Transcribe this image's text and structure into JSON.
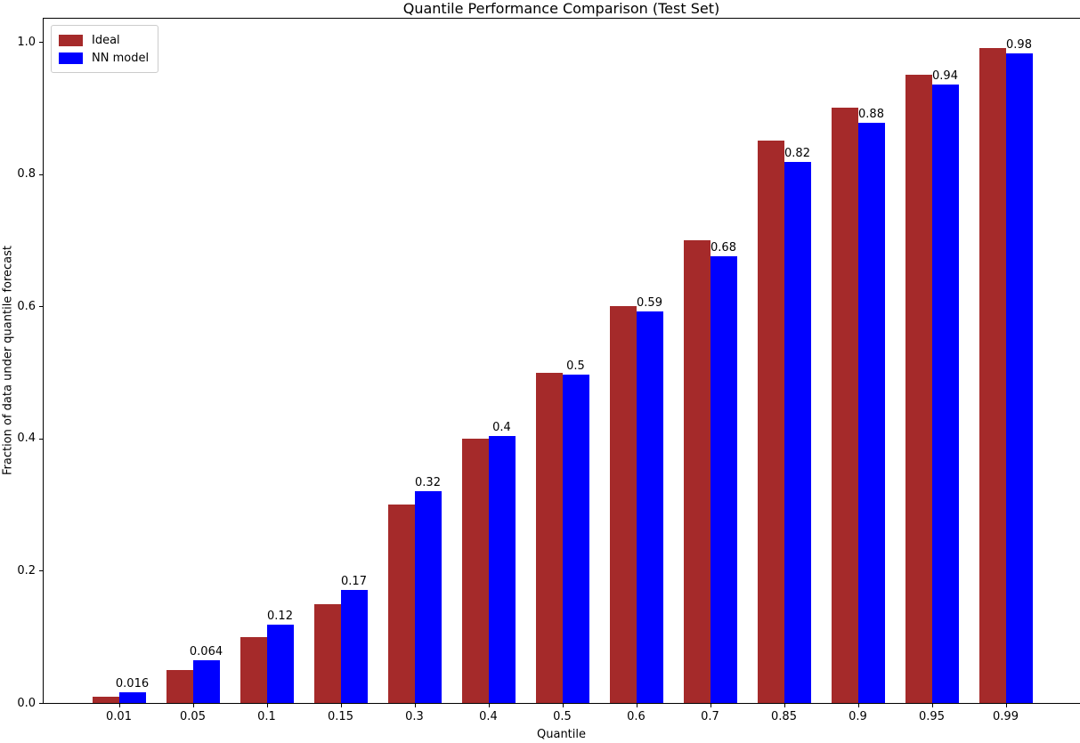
{
  "figure": {
    "title": "Quantile Performance Comparison (Test Set)",
    "xlabel": "Quantile",
    "ylabel": "Fraction of data under quantile forecast"
  },
  "chart_data": {
    "type": "bar",
    "title": "Quantile Performance Comparison (Test Set)",
    "xlabel": "Quantile",
    "ylabel": "Fraction of data under quantile forecast",
    "categories": [
      "0.01",
      "0.05",
      "0.1",
      "0.15",
      "0.3",
      "0.4",
      "0.5",
      "0.6",
      "0.7",
      "0.85",
      "0.9",
      "0.95",
      "0.99"
    ],
    "series": [
      {
        "name": "Ideal",
        "color": "#a52a2a",
        "values": [
          0.01,
          0.05,
          0.1,
          0.15,
          0.3,
          0.4,
          0.5,
          0.6,
          0.7,
          0.85,
          0.9,
          0.95,
          0.99
        ]
      },
      {
        "name": "NN model",
        "color": "#0000ff",
        "values": [
          0.016,
          0.064,
          0.118,
          0.171,
          0.32,
          0.404,
          0.497,
          0.592,
          0.675,
          0.818,
          0.878,
          0.935,
          0.983
        ],
        "bar_labels": [
          "0.016",
          "0.064",
          "0.12",
          "0.17",
          "0.32",
          "0.4",
          "0.5",
          "0.59",
          "0.68",
          "0.82",
          "0.88",
          "0.94",
          "0.98"
        ]
      }
    ],
    "y_ticks": [
      0.0,
      0.2,
      0.4,
      0.6,
      0.8,
      1.0
    ],
    "y_tick_labels": [
      "0.0",
      "0.2",
      "0.4",
      "0.6",
      "0.8",
      "1.0"
    ],
    "ylim": [
      0,
      1.036
    ],
    "grid": false,
    "legend_position": "upper left"
  }
}
